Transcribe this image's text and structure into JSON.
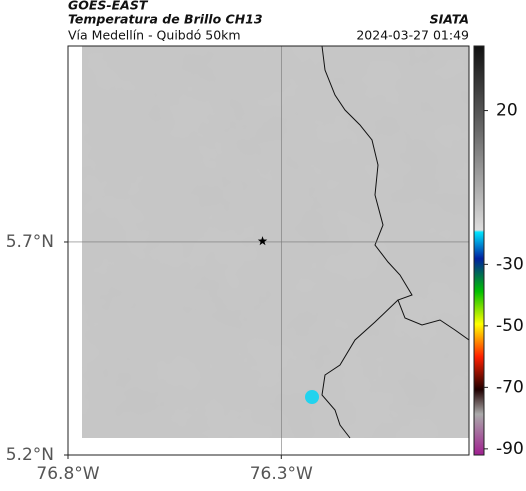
{
  "header": {
    "satellite": "GOES-EAST",
    "product": "Temperatura de Brillo CH13",
    "route": "Vía Medellín - Quibdó 50km",
    "source": "SIATA",
    "datetime": "2024-03-27 01:49"
  },
  "map": {
    "xlim": [
      -76.8,
      -75.86
    ],
    "ylim": [
      5.2,
      6.16
    ],
    "xticks": [
      {
        "value": -76.8,
        "label": "76.8°W"
      },
      {
        "value": -76.3,
        "label": "76.3°W"
      }
    ],
    "yticks": [
      {
        "value": 5.2,
        "label": "5.2°N"
      },
      {
        "value": 5.7,
        "label": "5.7°N"
      }
    ],
    "grid": true,
    "station": {
      "lon": -76.344,
      "lat": 5.702
    }
  },
  "colorbar": {
    "lim": [
      -92,
      41
    ],
    "ticks": [
      20,
      -30,
      -50,
      -70,
      -90
    ]
  }
}
